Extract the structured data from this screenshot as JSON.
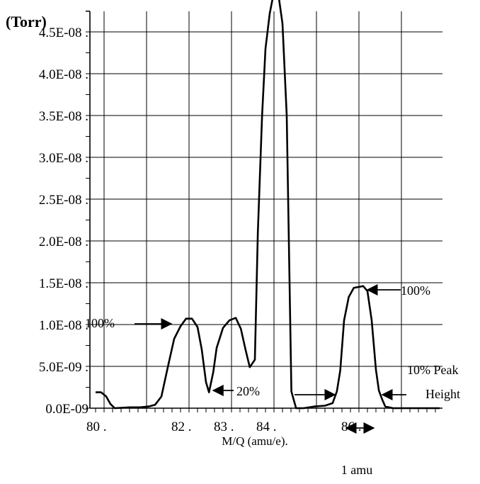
{
  "chart_data": {
    "type": "line",
    "title": "",
    "xlabel": "M/Q (amu/e).",
    "ylabel": "(Torr)",
    "xlim": [
      79.8,
      87.9
    ],
    "ylim": [
      0,
      5.4e-08
    ],
    "grid": true,
    "x_ticks": [
      80,
      81,
      82,
      83,
      84,
      85,
      86,
      87
    ],
    "x_tick_labels": [
      {
        "x": 80,
        "label": "80 ."
      },
      {
        "x": 82,
        "label": "82 ."
      },
      {
        "x": 83,
        "label": "83 ."
      },
      {
        "x": 84,
        "label": "84 ."
      },
      {
        "x": 86,
        "label": "86 ."
      }
    ],
    "y_ticks": [
      {
        "value": 0.0,
        "label": "0.0E-09"
      },
      {
        "value": 5e-09,
        "label": "5.0E-09 ."
      },
      {
        "value": 1e-08,
        "label": "1.0E-08 ."
      },
      {
        "value": 1.5e-08,
        "label": "1.5E-08 ."
      },
      {
        "value": 2e-08,
        "label": "2.0E-08 ."
      },
      {
        "value": 2.5e-08,
        "label": "2.5E-08 ."
      },
      {
        "value": 3e-08,
        "label": "3.0E-08 ."
      },
      {
        "value": 3.5e-08,
        "label": "3.5E-08 ."
      },
      {
        "value": 4e-08,
        "label": "4.0E-08 ."
      },
      {
        "value": 4.5e-08,
        "label": "4.5E-08 ."
      }
    ],
    "series": [
      {
        "points": [
          [
            79.8,
            1.9e-09
          ],
          [
            79.93,
            1.9e-09
          ],
          [
            80.05,
            1.4e-09
          ],
          [
            80.15,
            5e-10
          ],
          [
            80.25,
            0
          ],
          [
            80.6,
            1e-10
          ],
          [
            80.85,
            1e-10
          ],
          [
            81.05,
            2e-10
          ],
          [
            81.2,
            4e-10
          ],
          [
            81.35,
            1.4e-09
          ],
          [
            81.5,
            4.9e-09
          ],
          [
            81.65,
            8.3e-09
          ],
          [
            81.8,
            9.8e-09
          ],
          [
            81.93,
            1.07e-08
          ],
          [
            82.07,
            1.07e-08
          ],
          [
            82.2,
            9.7e-09
          ],
          [
            82.3,
            7e-09
          ],
          [
            82.4,
            3.1e-09
          ],
          [
            82.47,
            1.9e-09
          ],
          [
            82.57,
            4.3e-09
          ],
          [
            82.65,
            7.2e-09
          ],
          [
            82.8,
            9.6e-09
          ],
          [
            82.95,
            1.05e-08
          ],
          [
            83.1,
            1.08e-08
          ],
          [
            83.22,
            9.5e-09
          ],
          [
            83.33,
            7e-09
          ],
          [
            83.43,
            4.9e-09
          ],
          [
            83.55,
            5.8e-09
          ],
          [
            83.62,
            2.1e-08
          ],
          [
            83.72,
            3.5e-08
          ],
          [
            83.8,
            4.3e-08
          ],
          [
            83.9,
            4.72e-08
          ],
          [
            83.98,
            4.93e-08
          ],
          [
            84.1,
            4.96e-08
          ],
          [
            84.2,
            4.6e-08
          ],
          [
            84.3,
            3.5e-08
          ],
          [
            84.41,
            2e-09
          ],
          [
            84.52,
            0
          ],
          [
            84.7,
            0
          ],
          [
            84.95,
            2e-10
          ],
          [
            85.2,
            3e-10
          ],
          [
            85.38,
            6e-10
          ],
          [
            85.48,
            2e-09
          ],
          [
            85.56,
            4.5e-09
          ],
          [
            85.65,
            1.05e-08
          ],
          [
            85.76,
            1.33e-08
          ],
          [
            85.88,
            1.44e-08
          ],
          [
            86.0,
            1.45e-08
          ],
          [
            86.1,
            1.46e-08
          ],
          [
            86.2,
            1.4e-08
          ],
          [
            86.3,
            1.05e-08
          ],
          [
            86.4,
            4.6e-09
          ],
          [
            86.47,
            2.1e-09
          ],
          [
            86.55,
            1e-09
          ],
          [
            86.62,
            2e-10
          ],
          [
            86.8,
            0
          ],
          [
            87.1,
            0
          ],
          [
            87.5,
            0
          ],
          [
            87.9,
            0
          ]
        ]
      }
    ],
    "annotations": [
      {
        "text": "100%",
        "target": [
          81.95,
          1.07e-08
        ],
        "arrow": "right"
      },
      {
        "text": "20%",
        "target": [
          82.47,
          1.9e-09
        ],
        "arrow": "left"
      },
      {
        "text": "100%",
        "target": [
          86.1,
          1.46e-08
        ],
        "arrow": "left"
      },
      {
        "text": "10% Peak",
        "arrow": "none"
      },
      {
        "text": "Height",
        "target": [
          86.45,
          1.5e-09
        ],
        "arrow": "left"
      },
      {
        "text": "",
        "target": [
          85.5,
          1.5e-09
        ],
        "arrow": "right"
      },
      {
        "text": "1 amu",
        "span": [
          85.7,
          86.35
        ],
        "arrow": "both"
      }
    ]
  }
}
